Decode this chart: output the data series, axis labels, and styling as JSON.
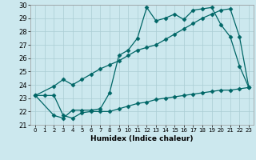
{
  "xlabel": "Humidex (Indice chaleur)",
  "bg_color": "#cce8ee",
  "line_color": "#006666",
  "grid_color": "#aaccd4",
  "xlim": [
    -0.5,
    23.5
  ],
  "ylim": [
    21,
    30
  ],
  "xticks": [
    0,
    1,
    2,
    3,
    4,
    5,
    6,
    7,
    8,
    9,
    10,
    11,
    12,
    13,
    14,
    15,
    16,
    17,
    18,
    19,
    20,
    21,
    22,
    23
  ],
  "yticks": [
    21,
    22,
    23,
    24,
    25,
    26,
    27,
    28,
    29,
    30
  ],
  "line1_x": [
    0,
    2,
    3,
    4,
    5,
    6,
    7,
    8,
    9,
    10,
    11,
    12,
    13,
    14,
    15,
    16,
    17,
    18,
    19,
    20,
    21,
    22,
    23
  ],
  "line1_y": [
    23.2,
    21.7,
    21.5,
    22.1,
    22.1,
    22.1,
    22.2,
    23.4,
    26.2,
    26.6,
    27.5,
    29.8,
    28.8,
    29.0,
    29.3,
    28.9,
    29.6,
    29.7,
    29.8,
    28.5,
    27.6,
    25.4,
    23.8
  ],
  "line2_x": [
    0,
    2,
    3,
    4,
    5,
    6,
    7,
    8,
    9,
    10,
    11,
    12,
    13,
    14,
    15,
    16,
    17,
    18,
    19,
    20,
    21,
    22,
    23
  ],
  "line2_y": [
    23.2,
    23.9,
    24.4,
    24.0,
    24.4,
    24.8,
    25.2,
    25.5,
    25.8,
    26.2,
    26.6,
    26.8,
    27.0,
    27.4,
    27.8,
    28.2,
    28.6,
    29.0,
    29.3,
    29.6,
    29.7,
    27.6,
    23.8
  ],
  "line3_x": [
    0,
    1,
    2,
    3,
    4,
    5,
    6,
    7,
    8,
    9,
    10,
    11,
    12,
    13,
    14,
    15,
    16,
    17,
    18,
    19,
    20,
    21,
    22,
    23
  ],
  "line3_y": [
    23.2,
    23.2,
    23.2,
    21.7,
    21.5,
    21.9,
    22.0,
    22.0,
    22.0,
    22.2,
    22.4,
    22.6,
    22.7,
    22.9,
    23.0,
    23.1,
    23.2,
    23.3,
    23.4,
    23.5,
    23.6,
    23.6,
    23.7,
    23.8
  ]
}
